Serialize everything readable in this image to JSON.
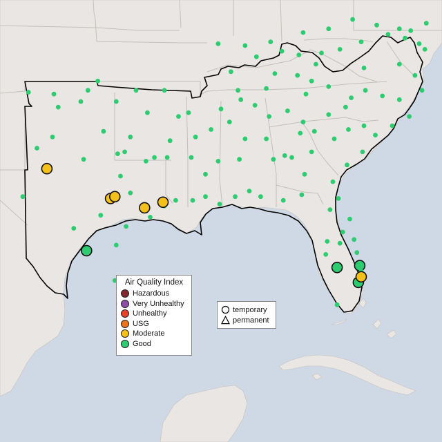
{
  "map": {
    "colors": {
      "ocean": "#cfd9e6",
      "land": "#e9e6e3",
      "land_dim": "#e2dfdc",
      "border": "#c4bfbb",
      "region_outline": "#000000"
    }
  },
  "aqi_legend": {
    "title": "Air Quality Index",
    "items": [
      {
        "label": "Hazardous",
        "color": "#7e2a2e"
      },
      {
        "label": "Very Unhealthy",
        "color": "#8e4ea8"
      },
      {
        "label": "Unhealthy",
        "color": "#e8412c"
      },
      {
        "label": "USG",
        "color": "#e9741b"
      },
      {
        "label": "Moderate",
        "color": "#f4c11b"
      },
      {
        "label": "Good",
        "color": "#2ecc71"
      }
    ]
  },
  "shape_legend": {
    "items": [
      {
        "label": "temporary",
        "icon": "circle-icon"
      },
      {
        "label": "permanent",
        "icon": "triangle-icon"
      }
    ]
  },
  "chart_data": {
    "type": "scatter",
    "title": "",
    "categories": [
      "Hazardous",
      "Very Unhealthy",
      "Unhealthy",
      "USG",
      "Moderate",
      "Good"
    ],
    "series": [
      {
        "name": "Moderate",
        "points": [
          {
            "lon": -102.3,
            "lat": 31.9
          },
          {
            "lon": -97.8,
            "lat": 30.3
          },
          {
            "lon": -97.5,
            "lat": 30.4
          },
          {
            "lon": -95.4,
            "lat": 29.8
          },
          {
            "lon": -94.1,
            "lat": 30.1
          },
          {
            "lon": -80.1,
            "lat": 26.1
          }
        ]
      },
      {
        "name": "Good",
        "points": [
          {
            "lon": -99.5,
            "lat": 27.5
          },
          {
            "lon": -81.8,
            "lat": 26.6
          },
          {
            "lon": -80.2,
            "lat": 26.7
          },
          {
            "lon": -80.3,
            "lat": 25.8
          },
          {
            "lon": -103.6,
            "lat": 36.0
          },
          {
            "lon": -101.8,
            "lat": 35.9
          },
          {
            "lon": -101.5,
            "lat": 35.2
          },
          {
            "lon": -99.9,
            "lat": 35.5
          },
          {
            "lon": -99.4,
            "lat": 36.1
          },
          {
            "lon": -98.7,
            "lat": 36.6
          },
          {
            "lon": -97.4,
            "lat": 35.5
          },
          {
            "lon": -96.0,
            "lat": 36.1
          },
          {
            "lon": -95.2,
            "lat": 34.9
          },
          {
            "lon": -94.0,
            "lat": 36.1
          },
          {
            "lon": -93.0,
            "lat": 34.7
          },
          {
            "lon": -92.3,
            "lat": 34.9
          },
          {
            "lon": -90.7,
            "lat": 34.0
          },
          {
            "lon": -90.0,
            "lat": 35.1
          },
          {
            "lon": -88.8,
            "lat": 36.1
          },
          {
            "lon": -87.6,
            "lat": 35.3
          },
          {
            "lon": -86.8,
            "lat": 36.2
          },
          {
            "lon": -85.3,
            "lat": 35.0
          },
          {
            "lon": -84.0,
            "lat": 35.9
          },
          {
            "lon": -83.6,
            "lat": 36.6
          },
          {
            "lon": -82.4,
            "lat": 36.3
          },
          {
            "lon": -81.2,
            "lat": 35.2
          },
          {
            "lon": -80.8,
            "lat": 35.7
          },
          {
            "lon": -79.8,
            "lat": 36.1
          },
          {
            "lon": -78.6,
            "lat": 35.8
          },
          {
            "lon": -77.4,
            "lat": 35.6
          },
          {
            "lon": -76.3,
            "lat": 36.9
          },
          {
            "lon": -77.4,
            "lat": 37.5
          },
          {
            "lon": -79.9,
            "lat": 37.3
          },
          {
            "lon": -81.6,
            "lat": 38.3
          },
          {
            "lon": -82.9,
            "lat": 38.1
          },
          {
            "lon": -84.5,
            "lat": 38.0
          },
          {
            "lon": -85.7,
            "lat": 38.2
          },
          {
            "lon": -87.5,
            "lat": 37.9
          },
          {
            "lon": -89.3,
            "lat": 37.1
          },
          {
            "lon": -86.2,
            "lat": 37.0
          },
          {
            "lon": -84.6,
            "lat": 36.9
          },
          {
            "lon": -83.3,
            "lat": 37.5
          },
          {
            "lon": -80.1,
            "lat": 38.7
          },
          {
            "lon": -78.2,
            "lat": 39.1
          },
          {
            "lon": -76.6,
            "lat": 39.3
          },
          {
            "lon": -75.5,
            "lat": 39.7
          },
          {
            "lon": -77.0,
            "lat": 38.9
          },
          {
            "lon": -77.4,
            "lat": 39.4
          },
          {
            "lon": -76.0,
            "lat": 38.6
          },
          {
            "lon": -79.0,
            "lat": 39.6
          },
          {
            "lon": -80.7,
            "lat": 39.9
          },
          {
            "lon": -82.4,
            "lat": 39.4
          },
          {
            "lon": -84.2,
            "lat": 39.2
          },
          {
            "lon": -86.5,
            "lat": 38.7
          },
          {
            "lon": -88.3,
            "lat": 38.5
          },
          {
            "lon": -90.2,
            "lat": 38.6
          },
          {
            "lon": -89.4,
            "lat": 34.4
          },
          {
            "lon": -88.3,
            "lat": 33.5
          },
          {
            "lon": -86.8,
            "lat": 33.5
          },
          {
            "lon": -86.3,
            "lat": 32.4
          },
          {
            "lon": -85.5,
            "lat": 32.6
          },
          {
            "lon": -84.4,
            "lat": 33.8
          },
          {
            "lon": -84.2,
            "lat": 34.4
          },
          {
            "lon": -83.4,
            "lat": 33.9
          },
          {
            "lon": -82.0,
            "lat": 33.5
          },
          {
            "lon": -81.0,
            "lat": 34.0
          },
          {
            "lon": -82.4,
            "lat": 34.8
          },
          {
            "lon": -79.9,
            "lat": 34.2
          },
          {
            "lon": -79.1,
            "lat": 33.7
          },
          {
            "lon": -80.0,
            "lat": 32.8
          },
          {
            "lon": -81.1,
            "lat": 32.1
          },
          {
            "lon": -81.7,
            "lat": 30.3
          },
          {
            "lon": -82.3,
            "lat": 29.7
          },
          {
            "lon": -81.4,
            "lat": 28.5
          },
          {
            "lon": -82.5,
            "lat": 28.0
          },
          {
            "lon": -80.6,
            "lat": 28.1
          },
          {
            "lon": -82.6,
            "lat": 27.3
          },
          {
            "lon": -81.6,
            "lat": 27.9
          },
          {
            "lon": -80.4,
            "lat": 27.4
          },
          {
            "lon": -84.3,
            "lat": 30.5
          },
          {
            "lon": -85.6,
            "lat": 30.2
          },
          {
            "lon": -87.2,
            "lat": 30.4
          },
          {
            "lon": -88.0,
            "lat": 30.7
          },
          {
            "lon": -89.0,
            "lat": 30.4
          },
          {
            "lon": -90.1,
            "lat": 30.0
          },
          {
            "lon": -91.1,
            "lat": 30.4
          },
          {
            "lon": -92.0,
            "lat": 30.2
          },
          {
            "lon": -93.2,
            "lat": 30.2
          },
          {
            "lon": -94.0,
            "lat": 29.9
          },
          {
            "lon": -90.2,
            "lat": 32.3
          },
          {
            "lon": -88.7,
            "lat": 32.4
          },
          {
            "lon": -91.1,
            "lat": 31.6
          },
          {
            "lon": -93.8,
            "lat": 32.5
          },
          {
            "lon": -92.1,
            "lat": 32.5
          },
          {
            "lon": -94.7,
            "lat": 32.5
          },
          {
            "lon": -95.3,
            "lat": 32.3
          },
          {
            "lon": -96.8,
            "lat": 32.8
          },
          {
            "lon": -97.3,
            "lat": 32.7
          },
          {
            "lon": -97.1,
            "lat": 31.5
          },
          {
            "lon": -96.4,
            "lat": 30.6
          },
          {
            "lon": -98.5,
            "lat": 29.4
          },
          {
            "lon": -97.4,
            "lat": 27.8
          },
          {
            "lon": -97.5,
            "lat": 25.9
          },
          {
            "lon": -99.7,
            "lat": 32.4
          },
          {
            "lon": -101.9,
            "lat": 33.6
          },
          {
            "lon": -102.1,
            "lat": 32.0
          },
          {
            "lon": -106.4,
            "lat": 31.8
          },
          {
            "lon": -103.0,
            "lat": 33.0
          },
          {
            "lon": -104.0,
            "lat": 30.4
          },
          {
            "lon": -100.4,
            "lat": 28.7
          },
          {
            "lon": -98.3,
            "lat": 33.9
          },
          {
            "lon": -96.4,
            "lat": 33.6
          },
          {
            "lon": -95.0,
            "lat": 29.3
          },
          {
            "lon": -96.7,
            "lat": 28.8
          },
          {
            "lon": -93.6,
            "lat": 33.4
          },
          {
            "lon": -91.8,
            "lat": 33.6
          },
          {
            "lon": -86.6,
            "lat": 34.7
          },
          {
            "lon": -88.6,
            "lat": 35.6
          },
          {
            "lon": -85.0,
            "lat": 32.5
          },
          {
            "lon": -83.6,
            "lat": 32.8
          },
          {
            "lon": -82.1,
            "lat": 31.2
          },
          {
            "lon": -84.1,
            "lat": 31.6
          },
          {
            "lon": -80.9,
            "lat": 29.2
          },
          {
            "lon": -80.1,
            "lat": 26.4
          },
          {
            "lon": -81.8,
            "lat": 24.6
          },
          {
            "lon": -77.9,
            "lat": 34.2
          },
          {
            "lon": -76.7,
            "lat": 34.7
          },
          {
            "lon": -75.8,
            "lat": 36.1
          },
          {
            "lon": -75.6,
            "lat": 38.3
          }
        ]
      }
    ],
    "monitor_types": [
      "temporary",
      "permanent"
    ]
  }
}
